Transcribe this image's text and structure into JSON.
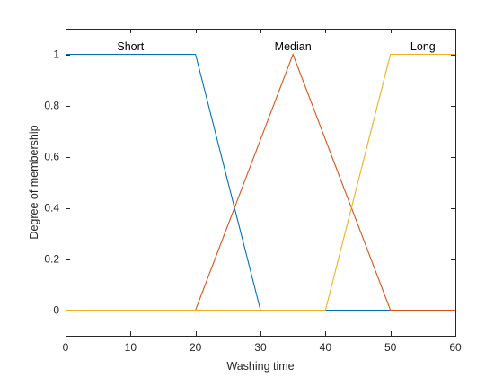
{
  "chart_data": {
    "type": "line",
    "title": "",
    "xlabel": "Washing time",
    "ylabel": "Degree of membership",
    "xlim": [
      0,
      60
    ],
    "ylim": [
      -0.1,
      1.1
    ],
    "xticks": [
      0,
      10,
      20,
      30,
      40,
      50,
      60
    ],
    "yticks": [
      0,
      0.2,
      0.4,
      0.6,
      0.8,
      1
    ],
    "xtick_labels": [
      "0",
      "10",
      "20",
      "30",
      "40",
      "50",
      "60"
    ],
    "ytick_labels": [
      "0",
      "0.2",
      "0.4",
      "0.6",
      "0.8",
      "1"
    ],
    "grid": false,
    "box": true,
    "series": [
      {
        "name": "Short",
        "color": "#0072BD",
        "x": [
          0,
          20,
          30,
          60
        ],
        "y": [
          1,
          1,
          0,
          0
        ],
        "label_x": 10,
        "label_y": 1.03
      },
      {
        "name": "Median",
        "color": "#D95319",
        "x": [
          0,
          20,
          35,
          50,
          60
        ],
        "y": [
          0,
          0,
          1,
          0,
          0
        ],
        "label_x": 35,
        "label_y": 1.03
      },
      {
        "name": "Long",
        "color": "#EDB120",
        "x": [
          0,
          40,
          50,
          60
        ],
        "y": [
          0,
          0,
          1,
          1
        ],
        "label_x": 55,
        "label_y": 1.03
      }
    ]
  }
}
